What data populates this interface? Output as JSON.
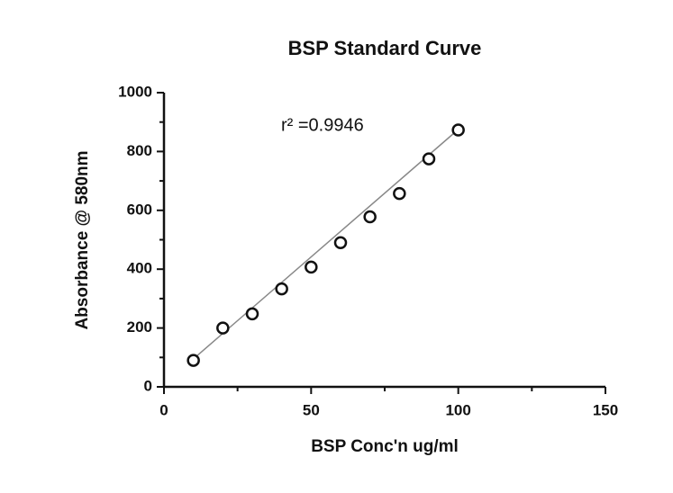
{
  "chart_data": {
    "type": "scatter",
    "title": "BSP Standard Curve",
    "x_label": "BSP Conc'n ug/ml",
    "y_label": "Absorbance @ 580nm",
    "annotation": "r² =0.9946",
    "x": [
      10,
      20,
      30,
      40,
      50,
      60,
      70,
      80,
      90,
      100
    ],
    "values": [
      90,
      200,
      248,
      333,
      407,
      490,
      578,
      657,
      775,
      873
    ],
    "color": "#111111",
    "trendline": {
      "x": [
        10,
        100
      ],
      "y": [
        95,
        875
      ],
      "color": "#888888"
    },
    "xlim": [
      0,
      150
    ],
    "xticks": [
      0,
      50,
      100,
      150
    ],
    "xminorticks": [
      25,
      75,
      125
    ],
    "ylim": [
      0,
      1000
    ],
    "yticks": [
      0,
      200,
      400,
      600,
      800,
      1000
    ],
    "yminorticks": [
      100,
      300,
      500,
      700,
      900
    ],
    "grid": false
  }
}
